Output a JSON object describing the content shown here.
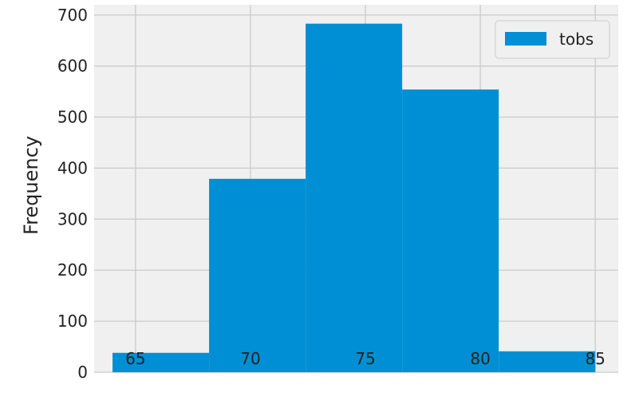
{
  "colors": {
    "plot_background": "#f0f0f0",
    "grid": "#cbcbcb",
    "bar": "#008fd5",
    "text": "#222222"
  },
  "chart_data": {
    "type": "bar",
    "title": "",
    "xlabel": "",
    "ylabel": "Frequency",
    "xlim": [
      63.2,
      86.0
    ],
    "ylim": [
      0,
      720
    ],
    "grid": true,
    "legend_position": "top-right",
    "x_ticks": [
      65,
      70,
      75,
      80,
      85
    ],
    "y_ticks": [
      0,
      100,
      200,
      300,
      400,
      500,
      600,
      700
    ],
    "series": [
      {
        "name": "tobs",
        "bins": [
          {
            "x0": 64.0,
            "x1": 68.2,
            "value": 38
          },
          {
            "x0": 68.2,
            "x1": 72.4,
            "value": 379
          },
          {
            "x0": 72.4,
            "x1": 76.6,
            "value": 683
          },
          {
            "x0": 76.6,
            "x1": 80.8,
            "value": 554
          },
          {
            "x0": 80.8,
            "x1": 85.0,
            "value": 41
          }
        ]
      }
    ]
  }
}
